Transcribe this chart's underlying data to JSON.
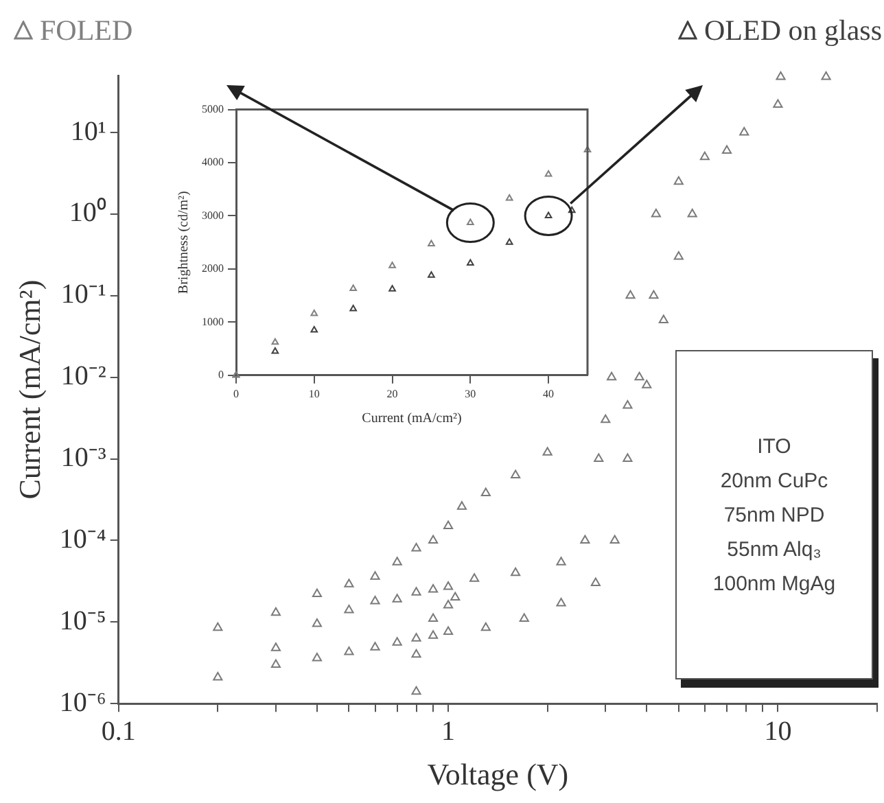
{
  "chart_data": [
    {
      "type": "scatter",
      "xlabel": "Voltage (V)",
      "ylabel": "Current (mA/cm²)",
      "log": "xy",
      "grid": false,
      "legend": false,
      "marker": "triangle",
      "xlim": [
        0.1,
        20
      ],
      "ylim": [
        1e-06,
        50
      ],
      "xticks": [
        0.1,
        {
          "value": 0.2,
          "label": null
        },
        {
          "value": 0.3,
          "label": null
        },
        {
          "value": 0.4,
          "label": null
        },
        {
          "value": 0.5,
          "label": null
        },
        {
          "value": 0.6,
          "label": null
        },
        {
          "value": 0.7,
          "label": null
        },
        {
          "value": 0.8,
          "label": null
        },
        {
          "value": 0.9,
          "label": null
        },
        1,
        {
          "value": 2,
          "label": null
        },
        {
          "value": 3,
          "label": null
        },
        {
          "value": 4,
          "label": null
        },
        {
          "value": 5,
          "label": null
        },
        {
          "value": 6,
          "label": null
        },
        {
          "value": 7,
          "label": null
        },
        {
          "value": 8,
          "label": null
        },
        {
          "value": 9,
          "label": null
        },
        10,
        {
          "value": 20,
          "label": null
        }
      ],
      "yticks": [
        {
          "value": 1e-06,
          "label": "10⁻⁶"
        },
        {
          "value": 1e-05,
          "label": "10⁻⁵"
        },
        {
          "value": 0.0001,
          "label": "10⁻⁴"
        },
        {
          "value": 0.001,
          "label": "10⁻³"
        },
        {
          "value": 0.01,
          "label": "10⁻²"
        },
        {
          "value": 0.1,
          "label": "10⁻¹"
        },
        {
          "value": 1,
          "label": "10⁰"
        },
        {
          "value": 10,
          "label": "10¹"
        }
      ],
      "series": [
        {
          "color": "#7a7a7a",
          "x": [
            0.2,
            0.3,
            0.4,
            0.5,
            0.6,
            0.7,
            0.8,
            0.9,
            1.0,
            1.1,
            1.3,
            1.6,
            2.0,
            3.0,
            3.5,
            4.0,
            4.5,
            5.0,
            5.5,
            7,
            10,
            14
          ],
          "values": [
            8.5e-06,
            1.3e-05,
            2.2e-05,
            2.9e-05,
            3.6e-05,
            5.4e-05,
            8e-05,
            0.0001,
            0.00015,
            0.00026,
            0.00038,
            0.00063,
            0.0012,
            0.003,
            0.0045,
            0.008,
            0.05,
            0.3,
            1,
            6,
            22,
            48
          ]
        },
        {
          "color": "#7a7a7a",
          "x": [
            0.3,
            0.4,
            0.5,
            0.6,
            0.7,
            0.8,
            0.9,
            1.0,
            1.2,
            1.6,
            2.2,
            2.6,
            2.86,
            3.13,
            3.57,
            4.27,
            5,
            6,
            7.9,
            10.2
          ],
          "values": [
            4.8e-06,
            9.5e-06,
            1.4e-05,
            1.8e-05,
            1.9e-05,
            2.3e-05,
            2.5e-05,
            2.7e-05,
            3.4e-05,
            4e-05,
            5.4e-05,
            0.0001,
            0.001,
            0.01,
            0.1,
            1,
            2.5,
            5,
            10,
            48
          ]
        },
        {
          "color": "#7a7a7a",
          "x": [
            0.2,
            0.3,
            0.4,
            0.5,
            0.6,
            0.7,
            0.8,
            0.9,
            1.0,
            1.3,
            1.7,
            2.2,
            2.8,
            3.2,
            3.5,
            3.8,
            4.2
          ],
          "values": [
            2.1e-06,
            3e-06,
            3.6e-06,
            4.3e-06,
            4.9e-06,
            5.6e-06,
            6.3e-06,
            6.8e-06,
            7.6e-06,
            8.5e-06,
            1.1e-05,
            1.7e-05,
            3e-05,
            0.0001,
            0.001,
            0.01,
            0.1
          ]
        },
        {
          "color": "#7a7a7a",
          "x": [
            0.8,
            0.8,
            0.9,
            1.0,
            1.05
          ],
          "values": [
            1.4e-06,
            4e-06,
            1.1e-05,
            1.6e-05,
            2e-05
          ]
        }
      ]
    },
    {
      "type": "scatter",
      "xlabel": "Current (mA/cm²)",
      "ylabel": "Brightness (cd/m²)",
      "grid": false,
      "legend": "top",
      "marker": "triangle",
      "xlim": [
        0,
        45
      ],
      "ylim": [
        0,
        5000
      ],
      "xticks": [
        0,
        10,
        20,
        30,
        40
      ],
      "yticks": [
        0,
        1000,
        2000,
        3000,
        4000,
        5000
      ],
      "series": [
        {
          "name": "FOLED",
          "color": "#808080",
          "x": [
            0,
            5,
            10,
            15,
            20,
            25,
            30,
            35,
            40,
            45
          ],
          "values": [
            0,
            620,
            1160,
            1630,
            2060,
            2470,
            2870,
            3330,
            3780,
            4240
          ]
        },
        {
          "name": "OLED on glass",
          "color": "#404040",
          "x": [
            0,
            5,
            10,
            15,
            20,
            25,
            30,
            35,
            40,
            43
          ],
          "values": [
            0,
            450,
            850,
            1250,
            1620,
            1880,
            2110,
            2500,
            3000,
            3100
          ]
        }
      ]
    },
    {
      "type": "other",
      "annotations": [
        "ITO",
        "20nm CuPc",
        "75nm NPD",
        "55nm Alq₃",
        "100nm MgAg"
      ]
    }
  ]
}
